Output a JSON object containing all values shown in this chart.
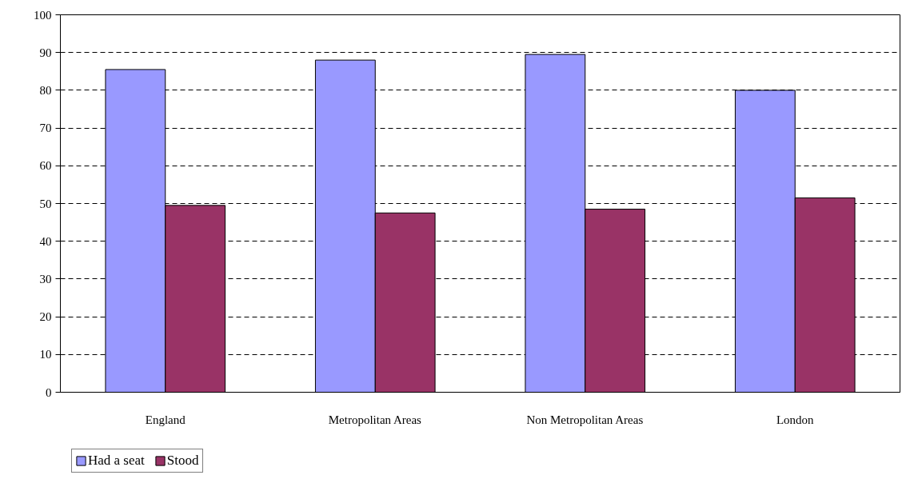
{
  "chart_data": {
    "type": "bar",
    "categories": [
      "England",
      "Metropolitan Areas",
      "Non Metropolitan Areas",
      "London"
    ],
    "series": [
      {
        "name": "Had a seat",
        "color": "#9999ff",
        "values": [
          85.5,
          88,
          89.5,
          80
        ]
      },
      {
        "name": "Stood",
        "color": "#993366",
        "values": [
          49.5,
          47.5,
          48.5,
          51.5
        ]
      }
    ],
    "ylim": [
      0,
      100
    ],
    "yticks": [
      0,
      10,
      20,
      30,
      40,
      50,
      60,
      70,
      80,
      90,
      100
    ],
    "grid": "y",
    "legend": "bottom left"
  }
}
